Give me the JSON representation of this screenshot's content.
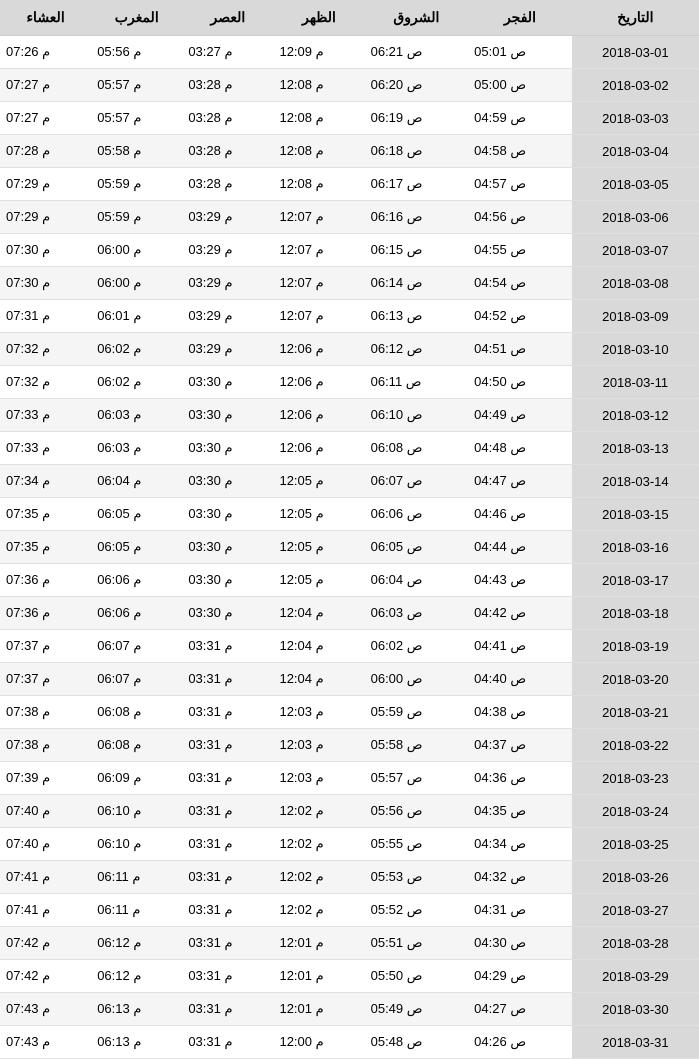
{
  "table": {
    "columns": [
      "التاريخ",
      "الفجر",
      "الشروق",
      "الظهر",
      "العصر",
      "المغرب",
      "العشاء"
    ],
    "rows": [
      {
        "date": "2018-03-01",
        "fajr": "05:01 ص",
        "sunrise": "06:21 ص",
        "dhuhr": "12:09 م",
        "asr": "03:27 م",
        "maghrib": "05:56 م",
        "isha": "07:26 م"
      },
      {
        "date": "2018-03-02",
        "fajr": "05:00 ص",
        "sunrise": "06:20 ص",
        "dhuhr": "12:08 م",
        "asr": "03:28 م",
        "maghrib": "05:57 م",
        "isha": "07:27 م"
      },
      {
        "date": "2018-03-03",
        "fajr": "04:59 ص",
        "sunrise": "06:19 ص",
        "dhuhr": "12:08 م",
        "asr": "03:28 م",
        "maghrib": "05:57 م",
        "isha": "07:27 م"
      },
      {
        "date": "2018-03-04",
        "fajr": "04:58 ص",
        "sunrise": "06:18 ص",
        "dhuhr": "12:08 م",
        "asr": "03:28 م",
        "maghrib": "05:58 م",
        "isha": "07:28 م"
      },
      {
        "date": "2018-03-05",
        "fajr": "04:57 ص",
        "sunrise": "06:17 ص",
        "dhuhr": "12:08 م",
        "asr": "03:28 م",
        "maghrib": "05:59 م",
        "isha": "07:29 م"
      },
      {
        "date": "2018-03-06",
        "fajr": "04:56 ص",
        "sunrise": "06:16 ص",
        "dhuhr": "12:07 م",
        "asr": "03:29 م",
        "maghrib": "05:59 م",
        "isha": "07:29 م"
      },
      {
        "date": "2018-03-07",
        "fajr": "04:55 ص",
        "sunrise": "06:15 ص",
        "dhuhr": "12:07 م",
        "asr": "03:29 م",
        "maghrib": "06:00 م",
        "isha": "07:30 م"
      },
      {
        "date": "2018-03-08",
        "fajr": "04:54 ص",
        "sunrise": "06:14 ص",
        "dhuhr": "12:07 م",
        "asr": "03:29 م",
        "maghrib": "06:00 م",
        "isha": "07:30 م"
      },
      {
        "date": "2018-03-09",
        "fajr": "04:52 ص",
        "sunrise": "06:13 ص",
        "dhuhr": "12:07 م",
        "asr": "03:29 م",
        "maghrib": "06:01 م",
        "isha": "07:31 م"
      },
      {
        "date": "2018-03-10",
        "fajr": "04:51 ص",
        "sunrise": "06:12 ص",
        "dhuhr": "12:06 م",
        "asr": "03:29 م",
        "maghrib": "06:02 م",
        "isha": "07:32 م"
      },
      {
        "date": "2018-03-11",
        "fajr": "04:50 ص",
        "sunrise": "06:11 ص",
        "dhuhr": "12:06 م",
        "asr": "03:30 م",
        "maghrib": "06:02 م",
        "isha": "07:32 م"
      },
      {
        "date": "2018-03-12",
        "fajr": "04:49 ص",
        "sunrise": "06:10 ص",
        "dhuhr": "12:06 م",
        "asr": "03:30 م",
        "maghrib": "06:03 م",
        "isha": "07:33 م"
      },
      {
        "date": "2018-03-13",
        "fajr": "04:48 ص",
        "sunrise": "06:08 ص",
        "dhuhr": "12:06 م",
        "asr": "03:30 م",
        "maghrib": "06:03 م",
        "isha": "07:33 م"
      },
      {
        "date": "2018-03-14",
        "fajr": "04:47 ص",
        "sunrise": "06:07 ص",
        "dhuhr": "12:05 م",
        "asr": "03:30 م",
        "maghrib": "06:04 م",
        "isha": "07:34 م"
      },
      {
        "date": "2018-03-15",
        "fajr": "04:46 ص",
        "sunrise": "06:06 ص",
        "dhuhr": "12:05 م",
        "asr": "03:30 م",
        "maghrib": "06:05 م",
        "isha": "07:35 م"
      },
      {
        "date": "2018-03-16",
        "fajr": "04:44 ص",
        "sunrise": "06:05 ص",
        "dhuhr": "12:05 م",
        "asr": "03:30 م",
        "maghrib": "06:05 م",
        "isha": "07:35 م"
      },
      {
        "date": "2018-03-17",
        "fajr": "04:43 ص",
        "sunrise": "06:04 ص",
        "dhuhr": "12:05 م",
        "asr": "03:30 م",
        "maghrib": "06:06 م",
        "isha": "07:36 م"
      },
      {
        "date": "2018-03-18",
        "fajr": "04:42 ص",
        "sunrise": "06:03 ص",
        "dhuhr": "12:04 م",
        "asr": "03:30 م",
        "maghrib": "06:06 م",
        "isha": "07:36 م"
      },
      {
        "date": "2018-03-19",
        "fajr": "04:41 ص",
        "sunrise": "06:02 ص",
        "dhuhr": "12:04 م",
        "asr": "03:31 م",
        "maghrib": "06:07 م",
        "isha": "07:37 م"
      },
      {
        "date": "2018-03-20",
        "fajr": "04:40 ص",
        "sunrise": "06:00 ص",
        "dhuhr": "12:04 م",
        "asr": "03:31 م",
        "maghrib": "06:07 م",
        "isha": "07:37 م"
      },
      {
        "date": "2018-03-21",
        "fajr": "04:38 ص",
        "sunrise": "05:59 ص",
        "dhuhr": "12:03 م",
        "asr": "03:31 م",
        "maghrib": "06:08 م",
        "isha": "07:38 م"
      },
      {
        "date": "2018-03-22",
        "fajr": "04:37 ص",
        "sunrise": "05:58 ص",
        "dhuhr": "12:03 م",
        "asr": "03:31 م",
        "maghrib": "06:08 م",
        "isha": "07:38 م"
      },
      {
        "date": "2018-03-23",
        "fajr": "04:36 ص",
        "sunrise": "05:57 ص",
        "dhuhr": "12:03 م",
        "asr": "03:31 م",
        "maghrib": "06:09 م",
        "isha": "07:39 م"
      },
      {
        "date": "2018-03-24",
        "fajr": "04:35 ص",
        "sunrise": "05:56 ص",
        "dhuhr": "12:02 م",
        "asr": "03:31 م",
        "maghrib": "06:10 م",
        "isha": "07:40 م"
      },
      {
        "date": "2018-03-25",
        "fajr": "04:34 ص",
        "sunrise": "05:55 ص",
        "dhuhr": "12:02 م",
        "asr": "03:31 م",
        "maghrib": "06:10 م",
        "isha": "07:40 م"
      },
      {
        "date": "2018-03-26",
        "fajr": "04:32 ص",
        "sunrise": "05:53 ص",
        "dhuhr": "12:02 م",
        "asr": "03:31 م",
        "maghrib": "06:11 م",
        "isha": "07:41 م"
      },
      {
        "date": "2018-03-27",
        "fajr": "04:31 ص",
        "sunrise": "05:52 ص",
        "dhuhr": "12:02 م",
        "asr": "03:31 م",
        "maghrib": "06:11 م",
        "isha": "07:41 م"
      },
      {
        "date": "2018-03-28",
        "fajr": "04:30 ص",
        "sunrise": "05:51 ص",
        "dhuhr": "12:01 م",
        "asr": "03:31 م",
        "maghrib": "06:12 م",
        "isha": "07:42 م"
      },
      {
        "date": "2018-03-29",
        "fajr": "04:29 ص",
        "sunrise": "05:50 ص",
        "dhuhr": "12:01 م",
        "asr": "03:31 م",
        "maghrib": "06:12 م",
        "isha": "07:42 م"
      },
      {
        "date": "2018-03-30",
        "fajr": "04:27 ص",
        "sunrise": "05:49 ص",
        "dhuhr": "12:01 م",
        "asr": "03:31 م",
        "maghrib": "06:13 م",
        "isha": "07:43 م"
      },
      {
        "date": "2018-03-31",
        "fajr": "04:26 ص",
        "sunrise": "05:48 ص",
        "dhuhr": "12:00 م",
        "asr": "03:31 م",
        "maghrib": "06:13 م",
        "isha": "07:43 م"
      }
    ],
    "header_bg": "#d9d9d9",
    "row_alt_bg": "#f5f5f5",
    "row_bg": "#ffffff",
    "border_color": "#e0e0e0",
    "text_color": "#000000",
    "header_fontsize": 14,
    "cell_fontsize": 13
  }
}
